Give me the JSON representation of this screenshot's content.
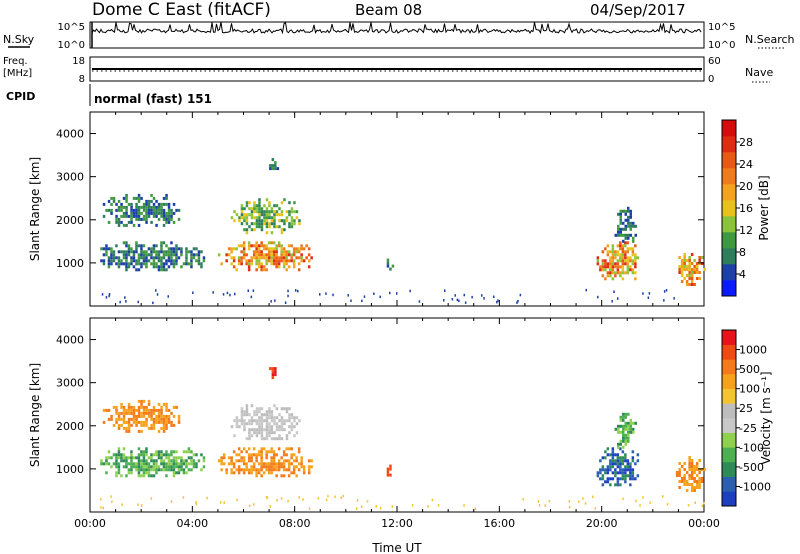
{
  "header": {
    "station": "Dome C East (fitACF)",
    "beam": "Beam 08",
    "date": "04/Sep/2017"
  },
  "top_panels": {
    "nsky_label": "N.Sky",
    "nsky_ticks": [
      "10^5",
      "10^0"
    ],
    "nsearch_label": "N.Search",
    "nsearch_ticks": [
      "10^5",
      "10^0"
    ],
    "freq_label": "Freq.",
    "freq_unit": "[MHz]",
    "freq_ticks": [
      "18",
      "8"
    ],
    "nave_label": "Nave",
    "nave_ticks": [
      "60",
      "0"
    ],
    "cpid_label": "CPID",
    "cpid_value": "normal (fast) 151"
  },
  "chart_data": [
    {
      "type": "heatmap",
      "name": "power-panel",
      "ylabel": "Slant Range [km]",
      "yticks": [
        "1000",
        "2000",
        "3000",
        "4000"
      ],
      "ylim": [
        0,
        4500
      ],
      "xlim_hours": [
        0,
        24
      ],
      "colorbar": {
        "label": "Power [dB]",
        "ticks": [
          "4",
          "8",
          "12",
          "16",
          "20",
          "24",
          "28"
        ],
        "colors": [
          "#0a1cff",
          "#1d3fa8",
          "#2e7d5b",
          "#3f9a3f",
          "#8bc43a",
          "#e8c21a",
          "#f4a320",
          "#ef7c1c",
          "#e85a14",
          "#e02b12",
          "#d60b0b"
        ]
      },
      "regions": [
        {
          "t0": 0.3,
          "t1": 4.5,
          "r0": 850,
          "r1": 1500,
          "level": "low"
        },
        {
          "t0": 0.5,
          "t1": 3.5,
          "r0": 1900,
          "r1": 2600,
          "level": "low"
        },
        {
          "t0": 5.0,
          "t1": 8.7,
          "r0": 850,
          "r1": 1500,
          "level": "high"
        },
        {
          "t0": 5.5,
          "t1": 8.2,
          "r0": 1700,
          "r1": 2500,
          "level": "mid"
        },
        {
          "t0": 7.0,
          "t1": 7.3,
          "r0": 3100,
          "r1": 3500,
          "level": "low"
        },
        {
          "t0": 11.5,
          "t1": 11.8,
          "r0": 850,
          "r1": 1100,
          "level": "low"
        },
        {
          "t0": 19.8,
          "t1": 21.5,
          "r0": 600,
          "r1": 1500,
          "level": "high"
        },
        {
          "t0": 20.5,
          "t1": 21.3,
          "r0": 1500,
          "r1": 2300,
          "level": "low"
        },
        {
          "t0": 22.9,
          "t1": 24.0,
          "r0": 500,
          "r1": 1300,
          "level": "high"
        }
      ]
    },
    {
      "type": "heatmap",
      "name": "velocity-panel",
      "ylabel": "Slant Range [km]",
      "yticks": [
        "1000",
        "2000",
        "3000",
        "4000"
      ],
      "ylim": [
        0,
        4500
      ],
      "xlim_hours": [
        0,
        24
      ],
      "xticks": [
        "00:00",
        "04:00",
        "08:00",
        "12:00",
        "16:00",
        "20:00",
        "00:00"
      ],
      "xlabel": "Time UT",
      "colorbar": {
        "label": "Velocity [m s⁻¹]",
        "ticks": [
          "1000",
          "500",
          "100",
          "25",
          "-25",
          "-100",
          "-500",
          "-1000"
        ],
        "colors": [
          "#1d3fc0",
          "#2b5fb0",
          "#2e8b57",
          "#4caf50",
          "#8fd14f",
          "#c8c8c8",
          "#bdbdbd",
          "#f4c430",
          "#f7a21c",
          "#f47a1a",
          "#ef4a14",
          "#e8131a"
        ]
      },
      "regions": [
        {
          "t0": 0.3,
          "t1": 4.5,
          "r0": 850,
          "r1": 1500,
          "level": "green"
        },
        {
          "t0": 0.5,
          "t1": 3.5,
          "r0": 1900,
          "r1": 2600,
          "level": "orange"
        },
        {
          "t0": 5.0,
          "t1": 8.7,
          "r0": 850,
          "r1": 1500,
          "level": "orange"
        },
        {
          "t0": 5.5,
          "t1": 8.2,
          "r0": 1700,
          "r1": 2500,
          "level": "gray"
        },
        {
          "t0": 7.0,
          "t1": 7.3,
          "r0": 3100,
          "r1": 3500,
          "level": "red"
        },
        {
          "t0": 11.5,
          "t1": 11.8,
          "r0": 850,
          "r1": 1100,
          "level": "red"
        },
        {
          "t0": 19.8,
          "t1": 21.5,
          "r0": 600,
          "r1": 1500,
          "level": "blue"
        },
        {
          "t0": 20.5,
          "t1": 21.3,
          "r0": 1500,
          "r1": 2300,
          "level": "green"
        },
        {
          "t0": 22.9,
          "t1": 24.0,
          "r0": 500,
          "r1": 1300,
          "level": "orange"
        }
      ]
    }
  ]
}
